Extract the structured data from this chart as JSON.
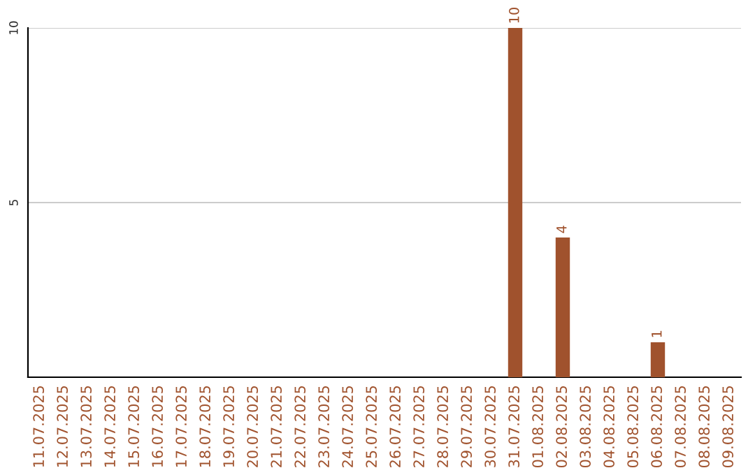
{
  "chart_data": {
    "type": "bar",
    "categories": [
      "11.07.2025",
      "12.07.2025",
      "13.07.2025",
      "14.07.2025",
      "15.07.2025",
      "16.07.2025",
      "17.07.2025",
      "18.07.2025",
      "19.07.2025",
      "20.07.2025",
      "21.07.2025",
      "22.07.2025",
      "23.07.2025",
      "24.07.2025",
      "25.07.2025",
      "26.07.2025",
      "27.07.2025",
      "28.07.2025",
      "29.07.2025",
      "30.07.2025",
      "31.07.2025",
      "01.08.2025",
      "02.08.2025",
      "03.08.2025",
      "04.08.2025",
      "05.08.2025",
      "06.08.2025",
      "07.08.2025",
      "08.08.2025",
      "09.08.2025"
    ],
    "values": [
      0,
      0,
      0,
      0,
      0,
      0,
      0,
      0,
      0,
      0,
      0,
      0,
      0,
      0,
      0,
      0,
      0,
      0,
      0,
      0,
      10,
      0,
      4,
      0,
      0,
      0,
      1,
      0,
      0,
      0
    ],
    "value_labels": [
      null,
      null,
      null,
      null,
      null,
      null,
      null,
      null,
      null,
      null,
      null,
      null,
      null,
      null,
      null,
      null,
      null,
      null,
      null,
      null,
      "10",
      null,
      "4",
      null,
      null,
      null,
      "1",
      null,
      null,
      null
    ],
    "color": "#a0522d",
    "ylim": [
      0,
      10
    ],
    "yticks": [
      5,
      10
    ],
    "grid": "y"
  }
}
